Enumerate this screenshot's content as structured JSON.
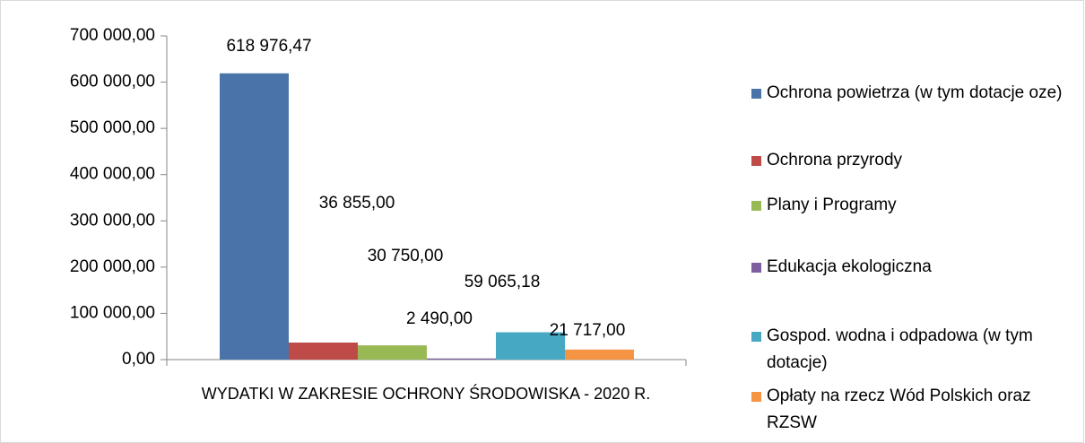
{
  "chart_data": {
    "type": "bar",
    "categories": [
      "WYDATKI W ZAKRESIE OCHRONY ŚRODOWISKA - 2020 R."
    ],
    "series": [
      {
        "name": "Ochrona powietrza (w tym dotacje oze)",
        "color": "#4a73aa",
        "values": [
          618976.47
        ],
        "value_labels": [
          "618 976,47"
        ]
      },
      {
        "name": "Ochrona przyrody",
        "color": "#be4b48",
        "values": [
          36855.0
        ],
        "value_labels": [
          "36 855,00"
        ]
      },
      {
        "name": "Plany i Programy",
        "color": "#99b955",
        "values": [
          30750.0
        ],
        "value_labels": [
          "30 750,00"
        ]
      },
      {
        "name": "Edukacja ekologiczna",
        "color": "#7d5fa0",
        "values": [
          2490.0
        ],
        "value_labels": [
          "2 490,00"
        ]
      },
      {
        "name": "Gospod. wodna  i odpadowa (w tym dotacje)",
        "color": "#46a8c2",
        "values": [
          59065.18
        ],
        "value_labels": [
          "59 065,18"
        ]
      },
      {
        "name": "Opłaty na rzecz Wód Polskich oraz RZSW",
        "color": "#f59443",
        "values": [
          21717.0
        ],
        "value_labels": [
          "21 717,00"
        ]
      }
    ],
    "ylim": [
      0,
      700000
    ],
    "yticks": [
      {
        "value": 0,
        "label": "0,00"
      },
      {
        "value": 100000,
        "label": "100 000,00"
      },
      {
        "value": 200000,
        "label": "200 000,00"
      },
      {
        "value": 300000,
        "label": "300 000,00"
      },
      {
        "value": 400000,
        "label": "400 000,00"
      },
      {
        "value": 500000,
        "label": "500 000,00"
      },
      {
        "value": 600000,
        "label": "600 000,00"
      },
      {
        "value": 700000,
        "label": "700 000,00"
      }
    ],
    "legend": "right"
  }
}
